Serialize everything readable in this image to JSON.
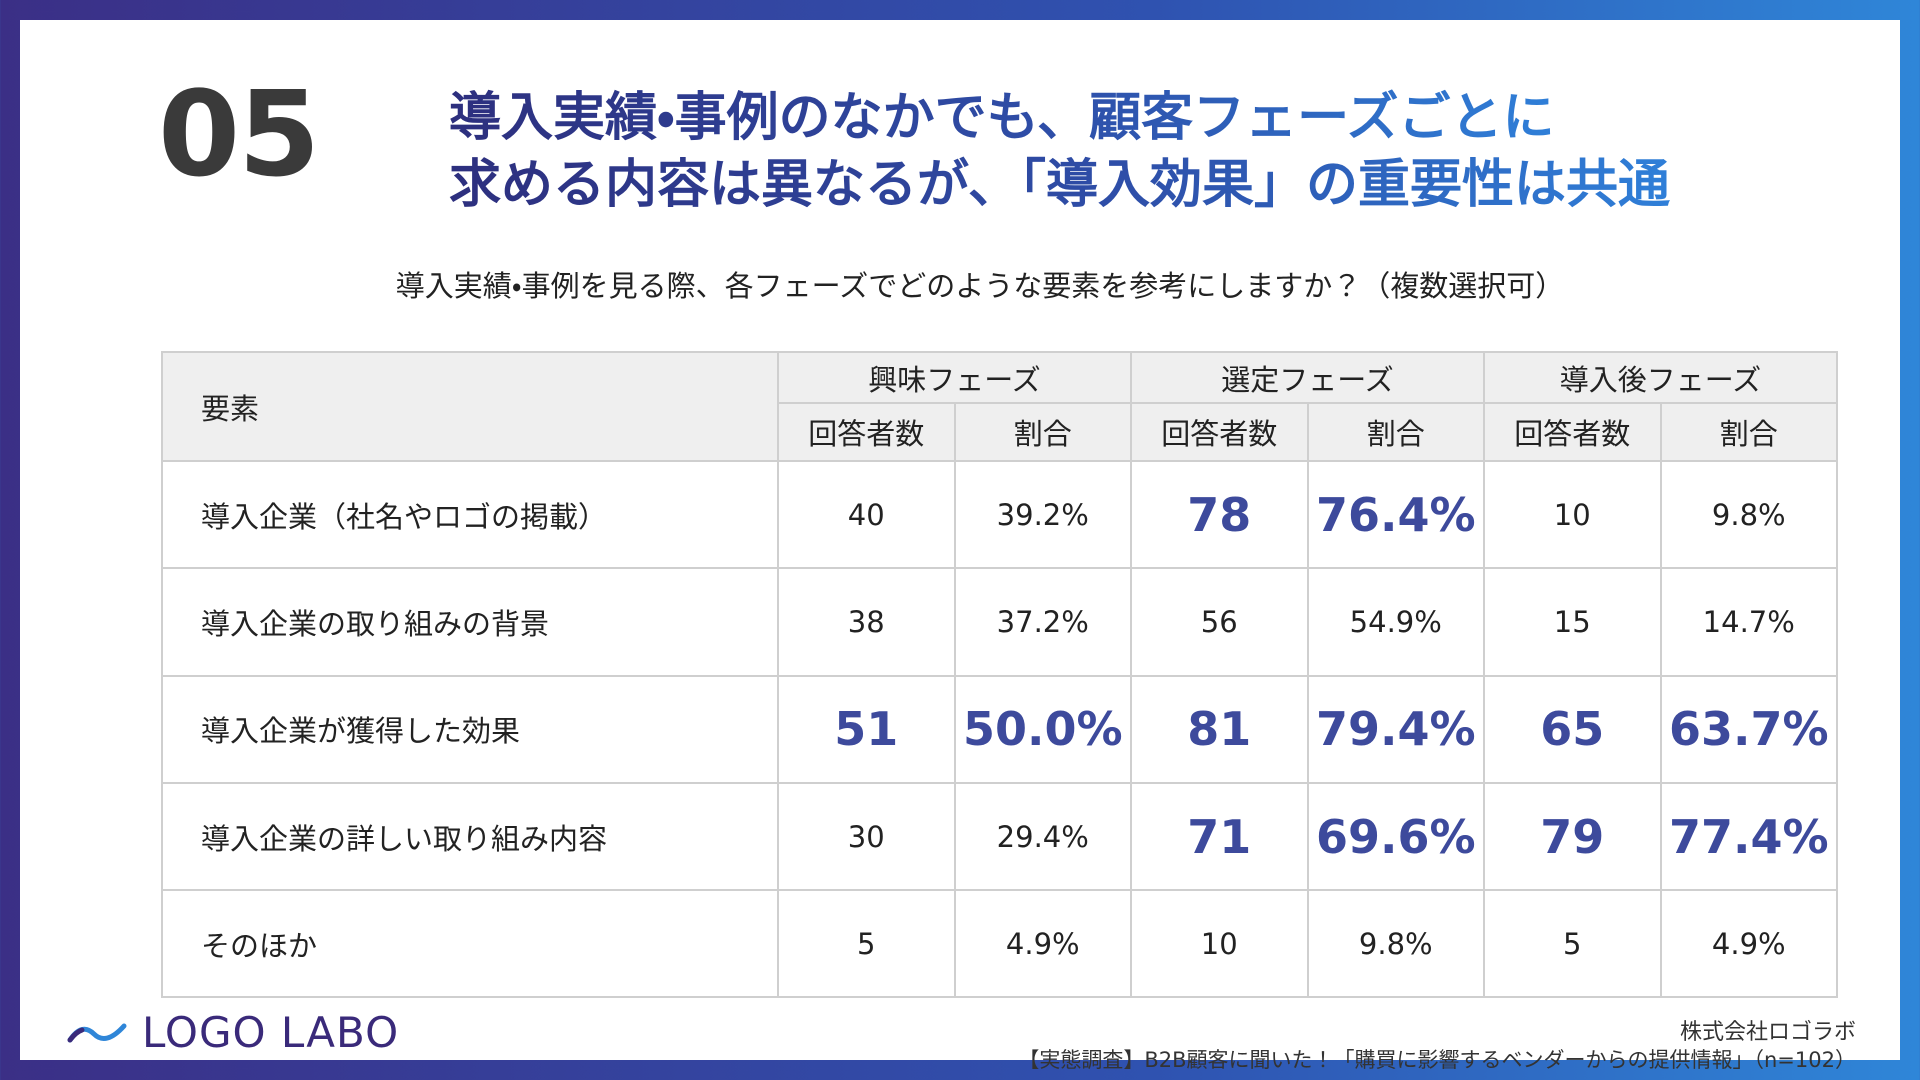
{
  "header": {
    "number": "05",
    "title_lines": [
      "導入実績・事例のなかでも、顧客フェーズごとに",
      "求める内容は異なるが、「導入効果」の重要性は共通"
    ],
    "question": "導入実績・事例を見る際、各フェーズでどのような要素を参考にしますか？（複数選択可）"
  },
  "table": {
    "corner": "要素",
    "phases": [
      "興味フェーズ",
      "選定フェーズ",
      "導入後フェーズ"
    ],
    "subheaders": [
      "回答者数",
      "割合"
    ],
    "rows": [
      {
        "label": "導入企業（社名やロゴの掲載）",
        "cells": [
          "40",
          "39.2%",
          "78",
          "76.4%",
          "10",
          "9.8%"
        ],
        "emphasis": [
          false,
          false,
          true,
          true,
          false,
          false
        ]
      },
      {
        "label": "導入企業の取り組みの背景",
        "cells": [
          "38",
          "37.2%",
          "56",
          "54.9%",
          "15",
          "14.7%"
        ],
        "emphasis": [
          false,
          false,
          false,
          false,
          false,
          false
        ]
      },
      {
        "label": "導入企業が獲得した効果",
        "cells": [
          "51",
          "50.0%",
          "81",
          "79.4%",
          "65",
          "63.7%"
        ],
        "emphasis": [
          true,
          true,
          true,
          true,
          true,
          true
        ]
      },
      {
        "label": "導入企業の詳しい取り組み内容",
        "cells": [
          "30",
          "29.4%",
          "71",
          "69.6%",
          "79",
          "77.4%"
        ],
        "emphasis": [
          false,
          false,
          true,
          true,
          true,
          true
        ]
      },
      {
        "label": "そのほか",
        "cells": [
          "5",
          "4.9%",
          "10",
          "9.8%",
          "5",
          "4.9%"
        ],
        "emphasis": [
          false,
          false,
          false,
          false,
          false,
          false
        ]
      }
    ]
  },
  "footer": {
    "logo": "LOGO LABO",
    "company": "株式会社ロゴラボ",
    "source": "【実態調査】B2B顧客に聞いた！「購買に影響するベンダーからの提供情報」（n=102）"
  }
}
